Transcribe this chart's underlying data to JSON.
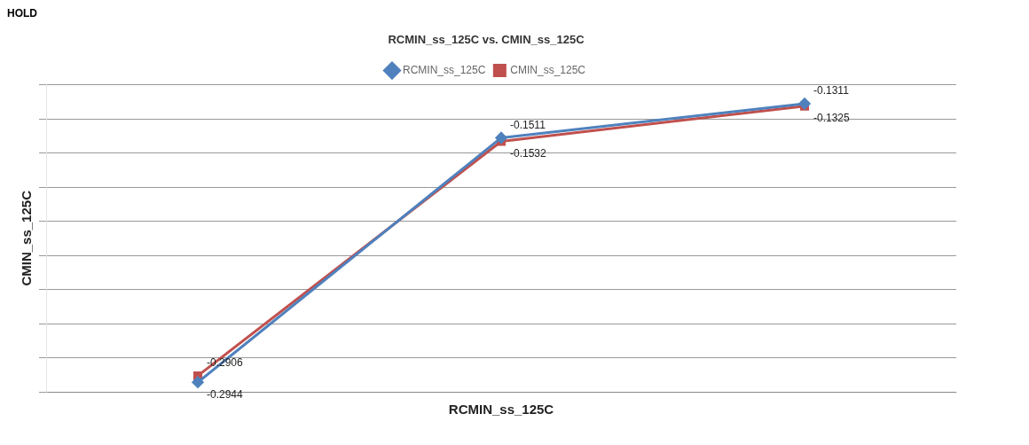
{
  "chart_data": {
    "type": "line",
    "title": "RCMIN_ss_125C vs. CMIN_ss_125C",
    "annotations": [
      "HOLD"
    ],
    "xlabel": "RCMIN_ss_125C",
    "ylabel": "CMIN_ss_125C",
    "categories": [
      null,
      null,
      null
    ],
    "series": [
      {
        "name": "RCMIN_ss_125C",
        "color": "#4f81bd",
        "marker": "diamond",
        "values": [
          -0.2944,
          -0.1511,
          -0.1311
        ]
      },
      {
        "name": "CMIN_ss_125C",
        "color": "#c0504d",
        "marker": "square",
        "values": [
          -0.2906,
          -0.1532,
          -0.1325
        ]
      }
    ],
    "data_labels": true,
    "grid": "y",
    "legend": "top",
    "tick_labels": false,
    "line_style": "solid"
  }
}
